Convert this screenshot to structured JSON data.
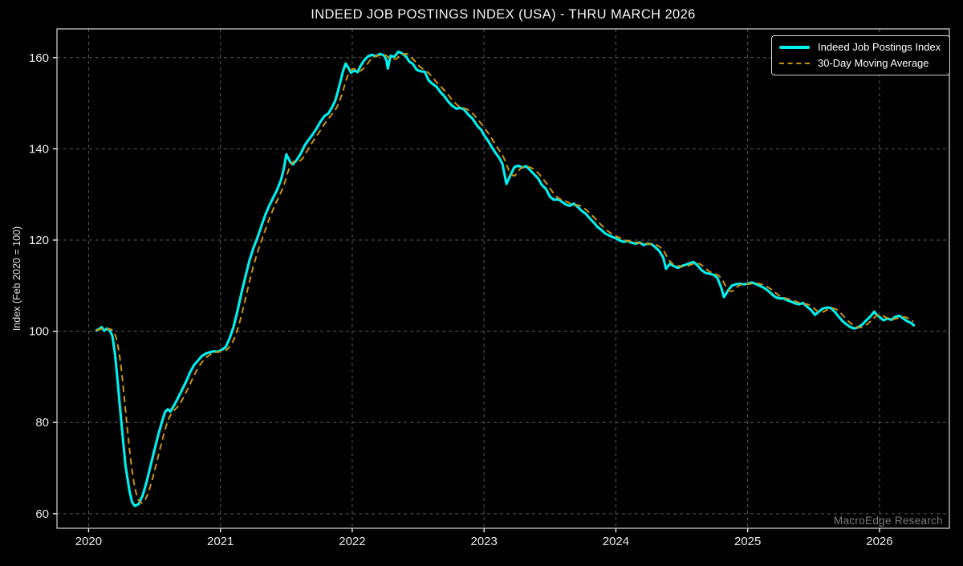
{
  "figure": {
    "watermark": "MacroEdge Research",
    "background_color": "#000000"
  },
  "chart_data": {
    "type": "line",
    "title": "INDEED JOB POSTINGS INDEX (USA) - THRU MARCH 2026",
    "xlabel": "",
    "ylabel": "Index (Feb 2020 = 100)",
    "x_ticks": [
      2020,
      2021,
      2022,
      2023,
      2024,
      2025,
      2026
    ],
    "y_ticks": [
      60,
      80,
      100,
      120,
      140,
      160
    ],
    "xlim": [
      2019.76,
      2026.53
    ],
    "ylim": [
      56.8,
      166.3
    ],
    "grid": true,
    "legend_position": "upper right",
    "axis": {
      "grid_color": "#585858",
      "spine_color": "#c8c8c8",
      "tick_color": "#f0f0f0",
      "label_color": "#eaeaea"
    },
    "series": [
      {
        "name": "Indeed Job Postings Index",
        "color": "#00F0F0",
        "line_style": "solid",
        "line_width": 3.1,
        "points": [
          [
            2020.06,
            100.2
          ],
          [
            2020.08,
            100.5
          ],
          [
            2020.1,
            100.9
          ],
          [
            2020.12,
            100.1
          ],
          [
            2020.14,
            100.6
          ],
          [
            2020.16,
            100.2
          ],
          [
            2020.18,
            99.0
          ],
          [
            2020.2,
            95.0
          ],
          [
            2020.22,
            89.0
          ],
          [
            2020.25,
            79.5
          ],
          [
            2020.28,
            70.5
          ],
          [
            2020.31,
            65.0
          ],
          [
            2020.33,
            62.5
          ],
          [
            2020.35,
            61.7
          ],
          [
            2020.38,
            62.1
          ],
          [
            2020.41,
            64.0
          ],
          [
            2020.44,
            67.0
          ],
          [
            2020.47,
            70.5
          ],
          [
            2020.5,
            74.0
          ],
          [
            2020.53,
            77.5
          ],
          [
            2020.56,
            80.5
          ],
          [
            2020.58,
            82.3
          ],
          [
            2020.6,
            82.9
          ],
          [
            2020.62,
            82.4
          ],
          [
            2020.65,
            83.8
          ],
          [
            2020.68,
            85.5
          ],
          [
            2020.71,
            87.2
          ],
          [
            2020.74,
            89.0
          ],
          [
            2020.77,
            91.0
          ],
          [
            2020.8,
            92.6
          ],
          [
            2020.83,
            93.6
          ],
          [
            2020.86,
            94.6
          ],
          [
            2020.89,
            95.1
          ],
          [
            2020.92,
            95.4
          ],
          [
            2020.95,
            95.6
          ],
          [
            2020.98,
            95.5
          ],
          [
            2021.0,
            95.8
          ],
          [
            2021.04,
            96.5
          ],
          [
            2021.07,
            98.5
          ],
          [
            2021.1,
            101.0
          ],
          [
            2021.13,
            104.5
          ],
          [
            2021.16,
            108.5
          ],
          [
            2021.19,
            112.0
          ],
          [
            2021.22,
            115.5
          ],
          [
            2021.25,
            118.2
          ],
          [
            2021.28,
            120.5
          ],
          [
            2021.31,
            123.0
          ],
          [
            2021.34,
            125.5
          ],
          [
            2021.37,
            127.5
          ],
          [
            2021.4,
            129.3
          ],
          [
            2021.43,
            131.0
          ],
          [
            2021.46,
            133.2
          ],
          [
            2021.48,
            135.5
          ],
          [
            2021.5,
            138.8
          ],
          [
            2021.53,
            137.1
          ],
          [
            2021.55,
            136.6
          ],
          [
            2021.58,
            137.6
          ],
          [
            2021.61,
            139.0
          ],
          [
            2021.64,
            140.8
          ],
          [
            2021.67,
            142.0
          ],
          [
            2021.7,
            143.2
          ],
          [
            2021.73,
            144.5
          ],
          [
            2021.76,
            146.0
          ],
          [
            2021.79,
            147.2
          ],
          [
            2021.82,
            147.8
          ],
          [
            2021.85,
            149.3
          ],
          [
            2021.87,
            150.5
          ],
          [
            2021.89,
            152.5
          ],
          [
            2021.91,
            154.7
          ],
          [
            2021.93,
            157.0
          ],
          [
            2021.95,
            158.7
          ],
          [
            2021.97,
            157.8
          ],
          [
            2021.99,
            156.7
          ],
          [
            2022.02,
            157.2
          ],
          [
            2022.04,
            156.8
          ],
          [
            2022.06,
            158.0
          ],
          [
            2022.09,
            159.4
          ],
          [
            2022.12,
            160.3
          ],
          [
            2022.15,
            160.6
          ],
          [
            2022.18,
            160.3
          ],
          [
            2022.21,
            160.8
          ],
          [
            2022.24,
            160.5
          ],
          [
            2022.26,
            159.4
          ],
          [
            2022.27,
            157.6
          ],
          [
            2022.29,
            160.4
          ],
          [
            2022.32,
            160.2
          ],
          [
            2022.35,
            161.3
          ],
          [
            2022.38,
            160.9
          ],
          [
            2022.41,
            160.2
          ],
          [
            2022.43,
            159.2
          ],
          [
            2022.46,
            158.6
          ],
          [
            2022.49,
            157.3
          ],
          [
            2022.52,
            157.0
          ],
          [
            2022.55,
            156.9
          ],
          [
            2022.58,
            155.0
          ],
          [
            2022.61,
            154.2
          ],
          [
            2022.64,
            153.6
          ],
          [
            2022.67,
            152.4
          ],
          [
            2022.7,
            151.5
          ],
          [
            2022.73,
            150.3
          ],
          [
            2022.76,
            149.4
          ],
          [
            2022.79,
            148.8
          ],
          [
            2022.82,
            149.0
          ],
          [
            2022.85,
            148.6
          ],
          [
            2022.88,
            147.5
          ],
          [
            2022.91,
            146.7
          ],
          [
            2022.95,
            145.0
          ],
          [
            2022.98,
            144.1
          ],
          [
            2023.0,
            143.0
          ],
          [
            2023.03,
            141.8
          ],
          [
            2023.06,
            140.3
          ],
          [
            2023.09,
            139.0
          ],
          [
            2023.12,
            137.8
          ],
          [
            2023.14,
            136.6
          ],
          [
            2023.17,
            132.3
          ],
          [
            2023.2,
            134.2
          ],
          [
            2023.23,
            136.0
          ],
          [
            2023.26,
            136.3
          ],
          [
            2023.29,
            135.9
          ],
          [
            2023.32,
            136.2
          ],
          [
            2023.35,
            135.3
          ],
          [
            2023.38,
            134.4
          ],
          [
            2023.41,
            133.5
          ],
          [
            2023.44,
            132.0
          ],
          [
            2023.47,
            131.2
          ],
          [
            2023.5,
            129.5
          ],
          [
            2023.53,
            128.8
          ],
          [
            2023.56,
            129.0
          ],
          [
            2023.59,
            128.4
          ],
          [
            2023.62,
            127.8
          ],
          [
            2023.65,
            127.5
          ],
          [
            2023.68,
            128.0
          ],
          [
            2023.71,
            127.3
          ],
          [
            2023.74,
            126.4
          ],
          [
            2023.77,
            125.8
          ],
          [
            2023.8,
            124.8
          ],
          [
            2023.83,
            123.9
          ],
          [
            2023.86,
            122.9
          ],
          [
            2023.89,
            122.2
          ],
          [
            2023.92,
            121.4
          ],
          [
            2023.95,
            121.0
          ],
          [
            2023.98,
            120.6
          ],
          [
            2024.0,
            120.4
          ],
          [
            2024.03,
            119.9
          ],
          [
            2024.06,
            119.6
          ],
          [
            2024.09,
            119.8
          ],
          [
            2024.12,
            119.4
          ],
          [
            2024.15,
            119.2
          ],
          [
            2024.18,
            119.5
          ],
          [
            2024.21,
            118.9
          ],
          [
            2024.24,
            119.2
          ],
          [
            2024.27,
            119.1
          ],
          [
            2024.3,
            118.4
          ],
          [
            2024.33,
            117.6
          ],
          [
            2024.36,
            116.1
          ],
          [
            2024.38,
            113.7
          ],
          [
            2024.41,
            114.8
          ],
          [
            2024.44,
            114.3
          ],
          [
            2024.47,
            113.9
          ],
          [
            2024.5,
            114.3
          ],
          [
            2024.53,
            114.6
          ],
          [
            2024.56,
            114.9
          ],
          [
            2024.59,
            115.2
          ],
          [
            2024.62,
            114.4
          ],
          [
            2024.65,
            113.4
          ],
          [
            2024.68,
            112.8
          ],
          [
            2024.71,
            112.6
          ],
          [
            2024.74,
            112.4
          ],
          [
            2024.77,
            111.7
          ],
          [
            2024.8,
            109.5
          ],
          [
            2024.82,
            107.5
          ],
          [
            2024.85,
            108.9
          ],
          [
            2024.88,
            110.0
          ],
          [
            2024.91,
            110.3
          ],
          [
            2024.94,
            110.4
          ],
          [
            2024.97,
            110.3
          ],
          [
            2025.0,
            110.4
          ],
          [
            2025.03,
            110.7
          ],
          [
            2025.06,
            110.4
          ],
          [
            2025.09,
            110.0
          ],
          [
            2025.12,
            109.6
          ],
          [
            2025.15,
            109.0
          ],
          [
            2025.18,
            108.2
          ],
          [
            2025.21,
            107.5
          ],
          [
            2025.24,
            107.2
          ],
          [
            2025.27,
            107.2
          ],
          [
            2025.3,
            106.8
          ],
          [
            2025.33,
            106.5
          ],
          [
            2025.36,
            106.1
          ],
          [
            2025.39,
            105.9
          ],
          [
            2025.42,
            106.2
          ],
          [
            2025.45,
            105.4
          ],
          [
            2025.48,
            104.7
          ],
          [
            2025.51,
            103.6
          ],
          [
            2025.54,
            104.3
          ],
          [
            2025.57,
            105.0
          ],
          [
            2025.6,
            105.2
          ],
          [
            2025.63,
            105.1
          ],
          [
            2025.66,
            104.3
          ],
          [
            2025.69,
            103.2
          ],
          [
            2025.72,
            102.2
          ],
          [
            2025.75,
            101.5
          ],
          [
            2025.78,
            100.9
          ],
          [
            2025.81,
            100.6
          ],
          [
            2025.84,
            100.9
          ],
          [
            2025.87,
            101.5
          ],
          [
            2025.9,
            102.4
          ],
          [
            2025.93,
            103.2
          ],
          [
            2025.96,
            104.3
          ],
          [
            2025.98,
            103.6
          ],
          [
            2026.01,
            102.9
          ],
          [
            2026.03,
            102.4
          ],
          [
            2026.06,
            102.8
          ],
          [
            2026.09,
            102.5
          ],
          [
            2026.12,
            103.2
          ],
          [
            2026.15,
            103.4
          ],
          [
            2026.18,
            102.8
          ],
          [
            2026.21,
            102.2
          ],
          [
            2026.24,
            101.8
          ],
          [
            2026.26,
            101.3
          ]
        ]
      },
      {
        "name": "30-Day Moving Average",
        "color": "#C9930E",
        "line_style": "dashed",
        "line_width": 2,
        "derived_from": "Indeed Job Postings Index",
        "window_days": 30
      }
    ]
  }
}
